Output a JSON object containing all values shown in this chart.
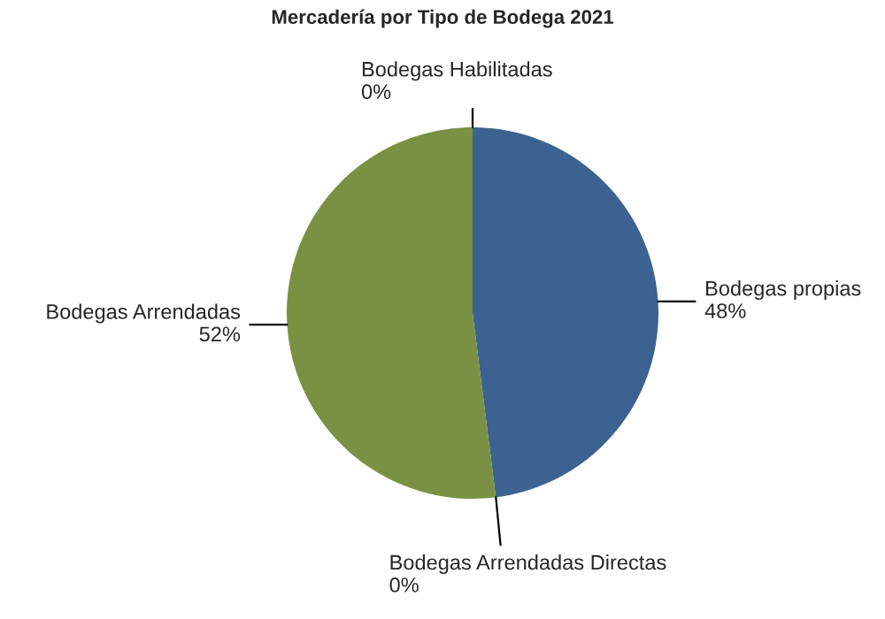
{
  "chart_data": {
    "type": "pie",
    "title": "Mercadería por Tipo de Bodega 2021",
    "categories": [
      "Bodegas propias",
      "Bodegas Arrendadas Directas",
      "Bodegas Arrendadas",
      "Bodegas Habilitadas"
    ],
    "values": [
      48,
      0,
      52,
      0
    ],
    "value_labels": [
      "48%",
      "0%",
      "52%",
      "0%"
    ],
    "colors": [
      "#3c6291",
      "#a5a5a5",
      "#7a9144",
      "#c0504d"
    ]
  }
}
